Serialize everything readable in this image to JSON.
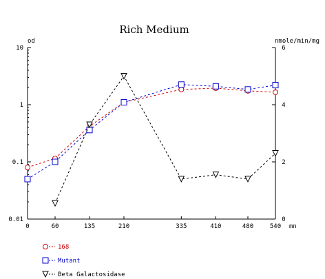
{
  "chart_data": {
    "type": "line",
    "title": "Rich Medium",
    "x": [
      0,
      60,
      135,
      210,
      335,
      410,
      480,
      540
    ],
    "x_tick_labels": [
      "0",
      "60",
      "135",
      "210",
      "335",
      "410",
      "480",
      "540"
    ],
    "xlabel": "mn",
    "xlim": [
      0,
      540
    ],
    "y_left": {
      "label": "od",
      "scale": "log",
      "lim": [
        0.01,
        10
      ],
      "ticks": [
        0.01,
        0.1,
        1,
        10
      ],
      "tick_labels": [
        "0.01",
        "0.1",
        "1",
        "10"
      ]
    },
    "y_right": {
      "label": "nmole/min/mg",
      "scale": "linear",
      "lim": [
        0,
        6
      ],
      "ticks": [
        0,
        2,
        4,
        6
      ],
      "tick_labels": [
        "0",
        "2",
        "4",
        "6"
      ]
    },
    "grid": false,
    "legend_position": "bottom-left",
    "series": [
      {
        "name": "168",
        "axis": "left",
        "color": "#cc0000",
        "marker": "circle",
        "values": [
          0.08,
          0.115,
          0.42,
          1.1,
          1.85,
          1.95,
          1.75,
          1.65
        ]
      },
      {
        "name": "Mutant",
        "axis": "left",
        "color": "#0000cc",
        "marker": "square",
        "values": [
          0.05,
          0.1,
          0.36,
          1.1,
          2.25,
          2.1,
          1.85,
          2.2
        ]
      },
      {
        "name": "Beta Galactosidase",
        "axis": "right",
        "color": "#000000",
        "marker": "triangle-down",
        "values": [
          null,
          0.55,
          3.3,
          5.0,
          1.4,
          1.55,
          1.4,
          2.3
        ]
      }
    ]
  }
}
